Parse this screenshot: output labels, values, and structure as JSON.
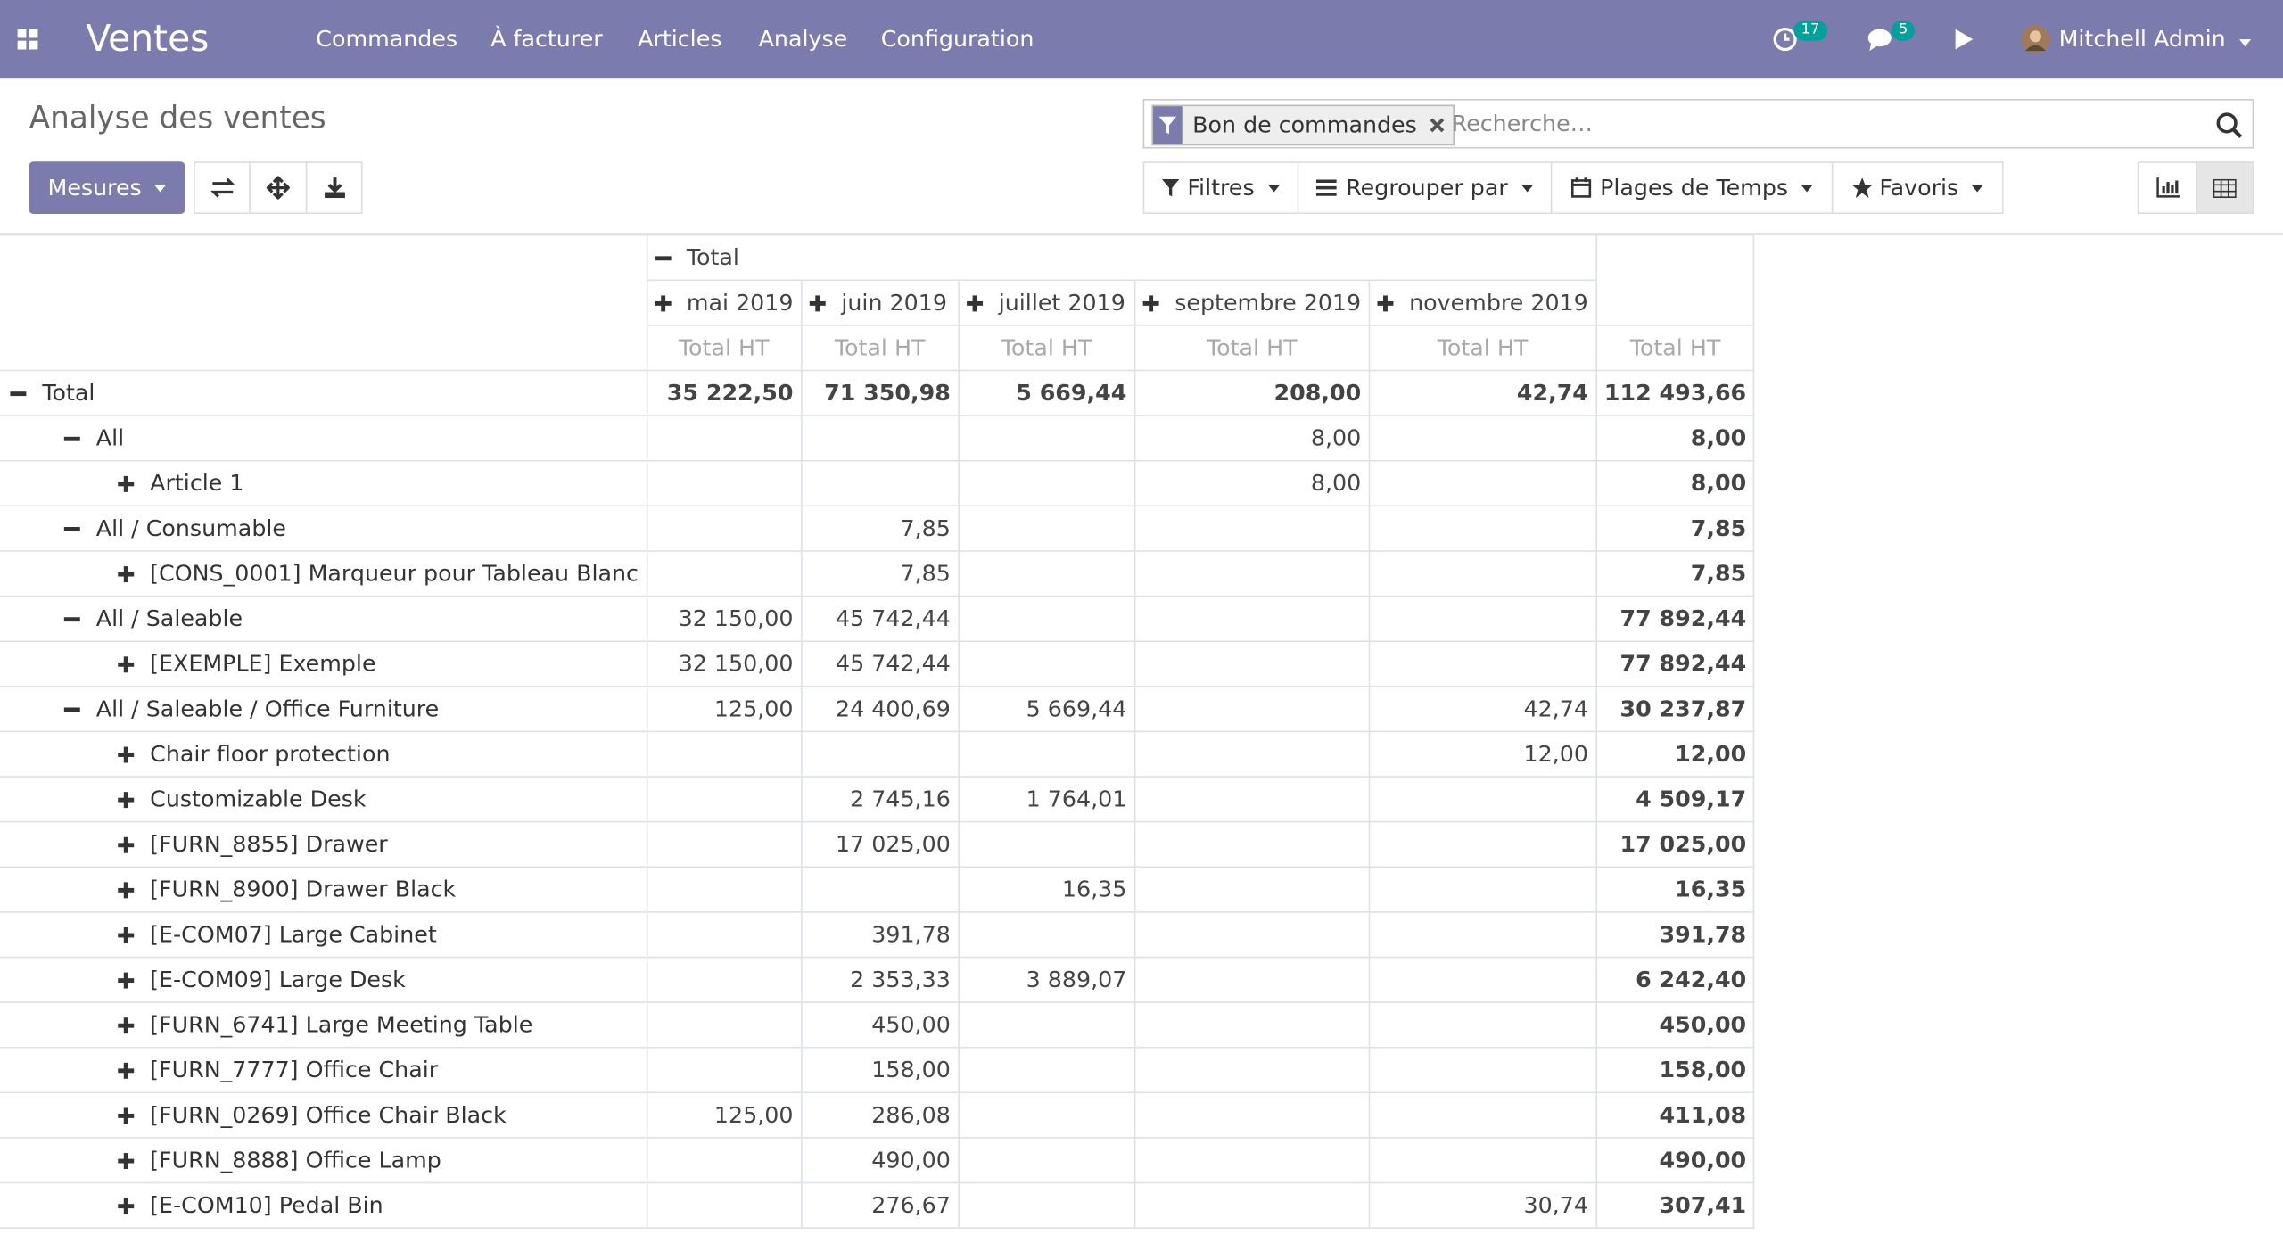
{
  "navbar": {
    "app": "Ventes",
    "menus": [
      "Commandes",
      "À facturer",
      "Articles",
      "Analyse",
      "Configuration"
    ],
    "activity_count": 17,
    "message_count": 5,
    "user": "Mitchell Admin"
  },
  "control_panel": {
    "title": "Analyse des ventes",
    "measures_button": "Mesures",
    "search_facet": "Bon de commandes",
    "search_placeholder": "Recherche…",
    "filters": [
      "Filtres",
      "Regrouper par",
      "Plages de Temps",
      "Favoris"
    ]
  },
  "pivot": {
    "column_header": "Total",
    "columns": [
      "mai 2019",
      "juin 2019",
      "juillet 2019",
      "septembre 2019",
      "novembre 2019"
    ],
    "measures": [
      "Total HT",
      "Total HT",
      "Total HT",
      "Total HT",
      "Total HT",
      "Total HT"
    ],
    "rows": [
      {
        "label": "Total",
        "level": 0,
        "expanded": true,
        "values": [
          "35 222,50",
          "71 350,98",
          "5 669,44",
          "208,00",
          "42,74",
          "112 493,66"
        ]
      },
      {
        "label": "All",
        "level": 1,
        "expanded": true,
        "values": [
          null,
          null,
          null,
          "8,00",
          null,
          "8,00"
        ]
      },
      {
        "label": "Article 1",
        "level": 2,
        "expanded": false,
        "values": [
          null,
          null,
          null,
          "8,00",
          null,
          "8,00"
        ]
      },
      {
        "label": "All / Consumable",
        "level": 1,
        "expanded": true,
        "values": [
          null,
          "7,85",
          null,
          null,
          null,
          "7,85"
        ]
      },
      {
        "label": "[CONS_0001] Marqueur pour Tableau Blanc",
        "level": 2,
        "expanded": false,
        "values": [
          null,
          "7,85",
          null,
          null,
          null,
          "7,85"
        ]
      },
      {
        "label": "All / Saleable",
        "level": 1,
        "expanded": true,
        "values": [
          "32 150,00",
          "45 742,44",
          null,
          null,
          null,
          "77 892,44"
        ]
      },
      {
        "label": "[EXEMPLE] Exemple",
        "level": 2,
        "expanded": false,
        "values": [
          "32 150,00",
          "45 742,44",
          null,
          null,
          null,
          "77 892,44"
        ]
      },
      {
        "label": "All / Saleable / Office Furniture",
        "level": 1,
        "expanded": true,
        "values": [
          "125,00",
          "24 400,69",
          "5 669,44",
          null,
          "42,74",
          "30 237,87"
        ]
      },
      {
        "label": "Chair floor protection",
        "level": 2,
        "expanded": false,
        "values": [
          null,
          null,
          null,
          null,
          "12,00",
          "12,00"
        ]
      },
      {
        "label": "Customizable Desk",
        "level": 2,
        "expanded": false,
        "values": [
          null,
          "2 745,16",
          "1 764,01",
          null,
          null,
          "4 509,17"
        ]
      },
      {
        "label": "[FURN_8855] Drawer",
        "level": 2,
        "expanded": false,
        "values": [
          null,
          "17 025,00",
          null,
          null,
          null,
          "17 025,00"
        ]
      },
      {
        "label": "[FURN_8900] Drawer Black",
        "level": 2,
        "expanded": false,
        "values": [
          null,
          null,
          "16,35",
          null,
          null,
          "16,35"
        ]
      },
      {
        "label": "[E-COM07] Large Cabinet",
        "level": 2,
        "expanded": false,
        "values": [
          null,
          "391,78",
          null,
          null,
          null,
          "391,78"
        ]
      },
      {
        "label": "[E-COM09] Large Desk",
        "level": 2,
        "expanded": false,
        "values": [
          null,
          "2 353,33",
          "3 889,07",
          null,
          null,
          "6 242,40"
        ]
      },
      {
        "label": "[FURN_6741] Large Meeting Table",
        "level": 2,
        "expanded": false,
        "values": [
          null,
          "450,00",
          null,
          null,
          null,
          "450,00"
        ]
      },
      {
        "label": "[FURN_7777] Office Chair",
        "level": 2,
        "expanded": false,
        "values": [
          null,
          "158,00",
          null,
          null,
          null,
          "158,00"
        ]
      },
      {
        "label": "[FURN_0269] Office Chair Black",
        "level": 2,
        "expanded": false,
        "values": [
          "125,00",
          "286,08",
          null,
          null,
          null,
          "411,08"
        ]
      },
      {
        "label": "[FURN_8888] Office Lamp",
        "level": 2,
        "expanded": false,
        "values": [
          null,
          "490,00",
          null,
          null,
          null,
          "490,00"
        ]
      },
      {
        "label": "[E-COM10] Pedal Bin",
        "level": 2,
        "expanded": false,
        "values": [
          null,
          "276,67",
          null,
          null,
          "30,74",
          "307,41"
        ]
      }
    ]
  }
}
